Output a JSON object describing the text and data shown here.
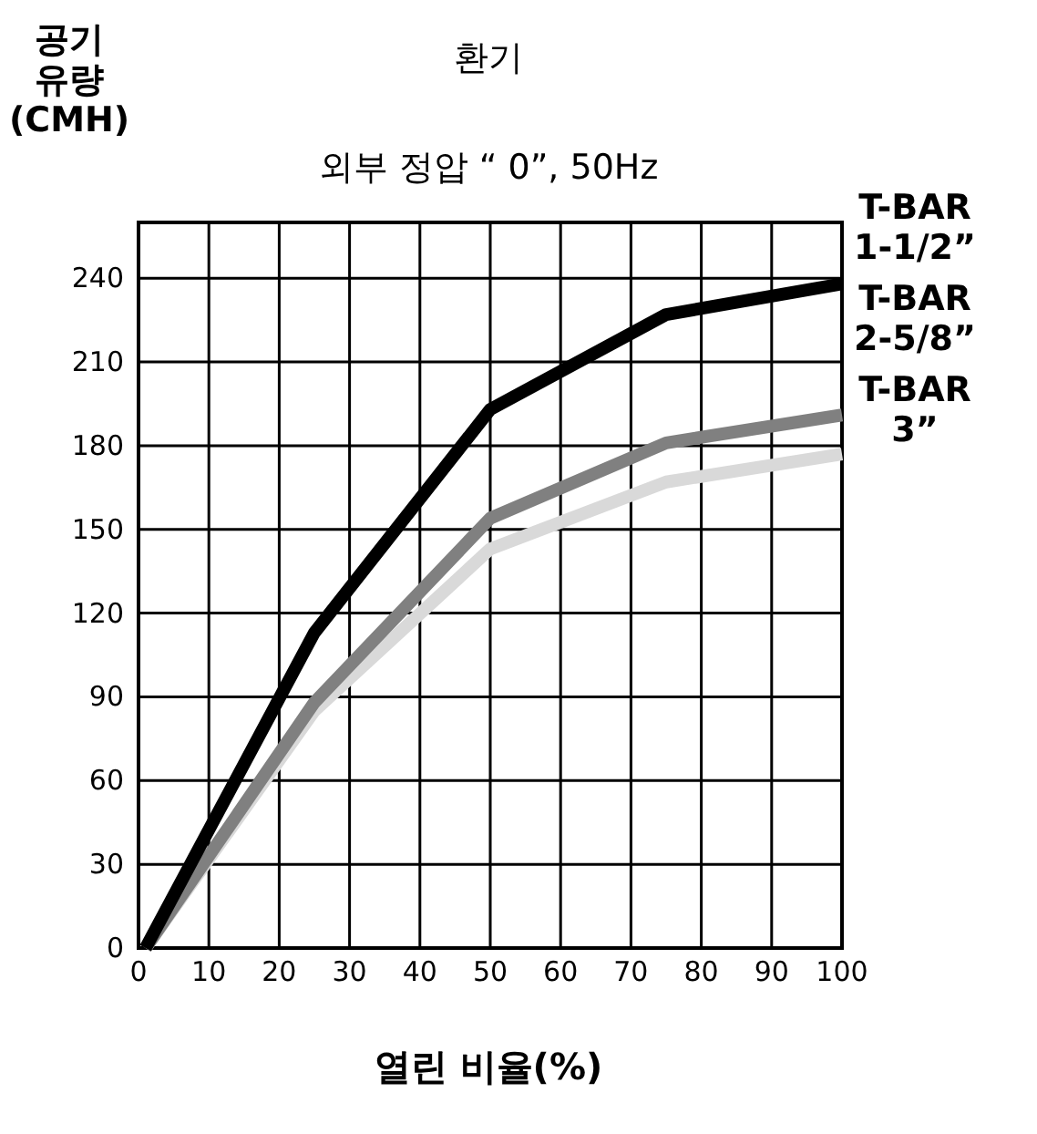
{
  "chart_data": {
    "type": "line",
    "title": "환기",
    "subtitle": "외부 정압 “ 0”, 50Hz",
    "xlabel": "열린 비율(%)",
    "ylabel": "공기 유량 (CMH)",
    "xlim": [
      0,
      100
    ],
    "xticks": [
      0,
      10,
      20,
      30,
      40,
      50,
      60,
      70,
      80,
      90,
      100
    ],
    "ylim": [
      0,
      260
    ],
    "yticks": [
      0,
      30,
      60,
      90,
      120,
      150,
      180,
      210,
      240
    ],
    "grid": true,
    "legend": "right",
    "marker": "none",
    "line_style": "solid",
    "series": [
      {
        "name": "T-BAR 1-1/2”",
        "color": "#000000",
        "x": [
          1,
          25,
          50,
          75,
          100
        ],
        "values": [
          0,
          113,
          193,
          227,
          238
        ]
      },
      {
        "name": "T-BAR 2-5/8”",
        "color": "#808080",
        "x": [
          1,
          25,
          50,
          75,
          100
        ],
        "values": [
          0,
          88,
          154,
          181,
          191
        ]
      },
      {
        "name": "T-BAR 3”",
        "color": "#d9d9d9",
        "x": [
          1,
          25,
          50,
          75,
          100
        ],
        "values": [
          0,
          85,
          143,
          167,
          177
        ]
      }
    ]
  }
}
